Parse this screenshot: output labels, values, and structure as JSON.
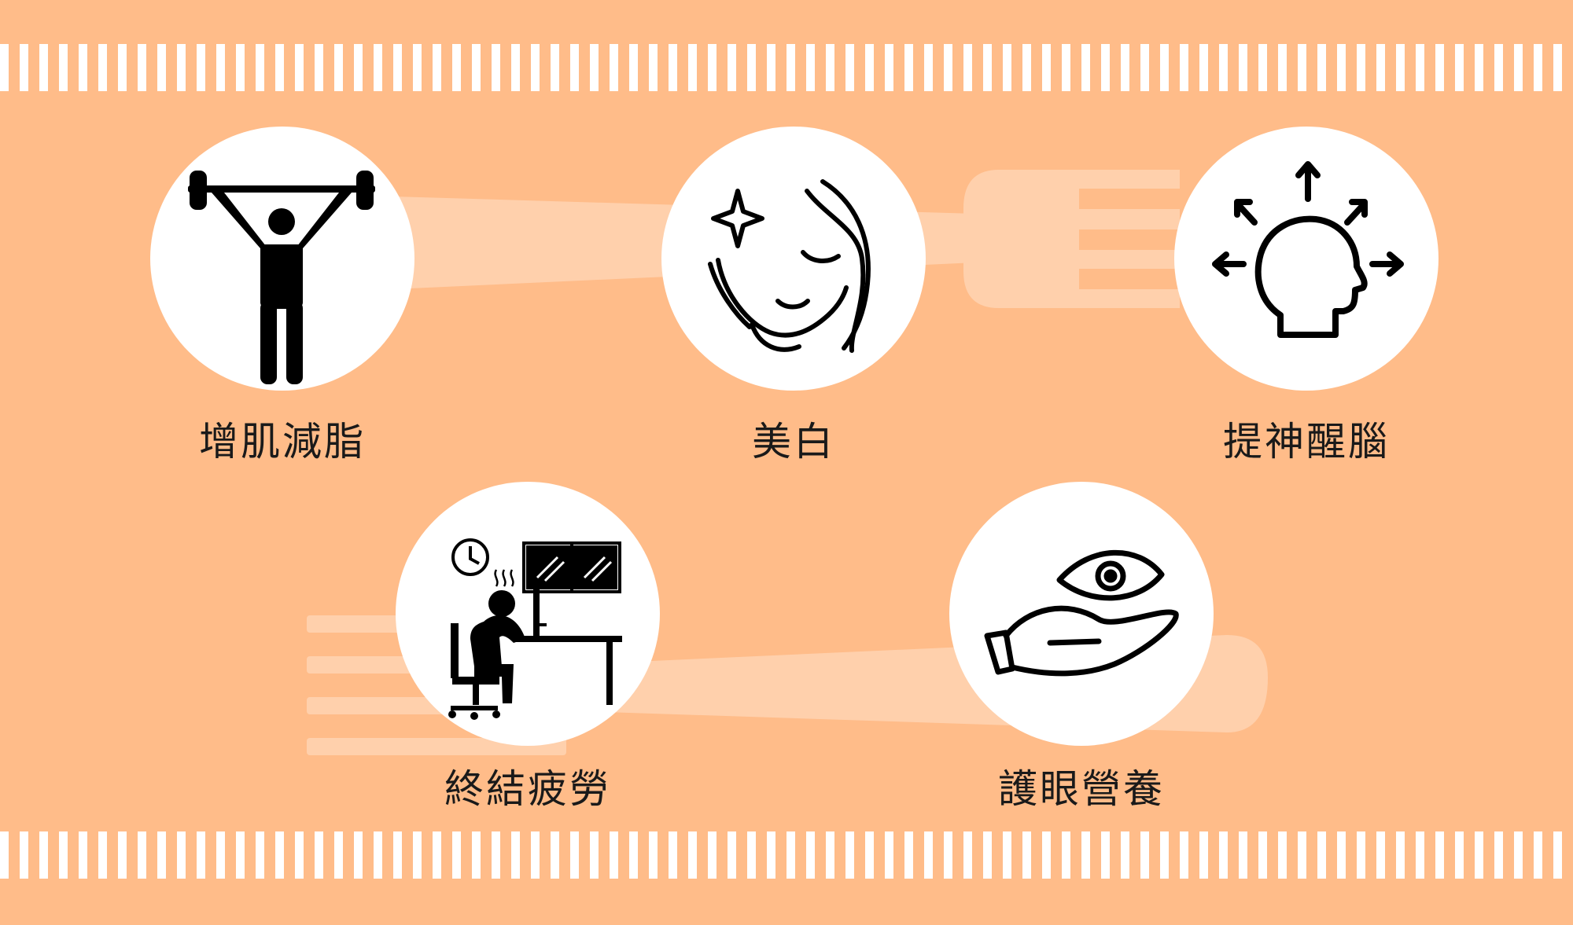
{
  "colors": {
    "background": "#FFBC89",
    "stripe": "#FFFFFF",
    "circle": "#FFFFFF",
    "icon": "#000000",
    "text": "#1A1A1A"
  },
  "items": [
    {
      "label": "增肌減脂",
      "icon": "weightlifter-icon"
    },
    {
      "label": "美白",
      "icon": "face-sparkle-icon"
    },
    {
      "label": "提神醒腦",
      "icon": "head-arrows-icon"
    },
    {
      "label": "終結疲勞",
      "icon": "tired-worker-icon"
    },
    {
      "label": "護眼營養",
      "icon": "eye-hand-icon"
    }
  ]
}
